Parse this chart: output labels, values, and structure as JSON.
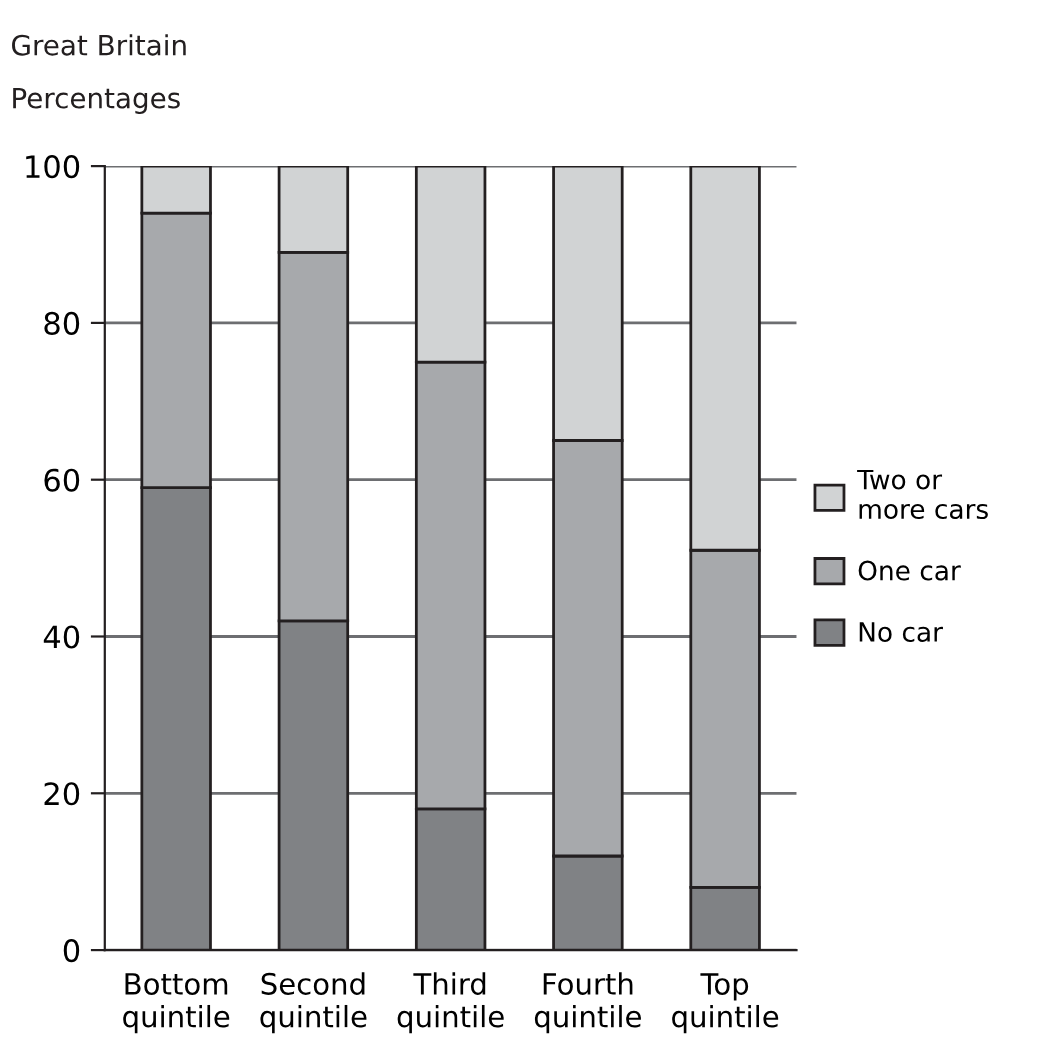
{
  "chart_data": {
    "type": "bar",
    "title": "Great Britain",
    "subtitle": "Percentages",
    "stacked": true,
    "categories": [
      "Bottom\nquintile",
      "Second\nquintile",
      "Third\nquintile",
      "Fourth\nquintile",
      "Top\nquintile"
    ],
    "series": [
      {
        "name": "No car",
        "color": "#808285",
        "values": [
          59,
          42,
          18,
          12,
          8
        ]
      },
      {
        "name": "One car",
        "color": "#a7a9ac",
        "values": [
          35,
          47,
          57,
          53,
          43
        ]
      },
      {
        "name": "Two or\nmore cars",
        "color": "#d1d3d4",
        "values": [
          6,
          11,
          25,
          35,
          49
        ]
      }
    ],
    "ylim": [
      0,
      100
    ],
    "yticks": [
      0,
      20,
      40,
      60,
      80,
      100
    ],
    "grid": "y",
    "legend": "right"
  }
}
